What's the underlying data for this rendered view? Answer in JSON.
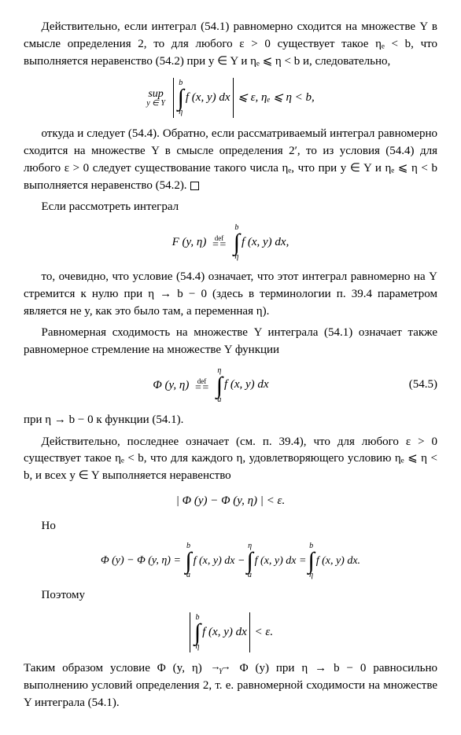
{
  "p1": "Действительно, если интеграл (54.1) равномерно сходится на множестве Y в смысле определения 2, то для любого ε > 0 существует такое ηₑ < b, что выполняется неравенство (54.2) при y ∈ Y и ηₑ ⩽ η < b и, следовательно,",
  "eq1_sup": "sup",
  "eq1_sub": "y ∈ Y",
  "eq1_top": "b",
  "eq1_bot": "η",
  "eq1_inner": "f (x,  y) dx",
  "eq1_tail": " ⩽ ε,    ηₑ ⩽ η < b,",
  "p2": "откуда и следует (54.4). Обратно, если рассматриваемый интеграл равномерно сходится на множестве Y в смысле определения 2′, то из условия (54.4) для любого ε > 0 следует существование такого числа ηₑ, что при y ∈ Y и ηₑ ⩽ η < b выполняется неравенство (54.2).",
  "p3": "Если рассмотреть интеграл",
  "eq2_lhs": "F (y,  η)",
  "eq2_top": "b",
  "eq2_bot": "η",
  "eq2_inner": "f (x,  y) dx,",
  "p4": "то, очевидно, что условие (54.4) означает, что этот интеграл равномерно на Y стремится к нулю при η → b − 0 (здесь в терминологии п. 39.4 параметром является не y, как это было там, а переменная η).",
  "p5": "Равномерная сходимость на множестве Y интеграла (54.1) означает также равномерное стремление на множестве Y функции",
  "eq3_lhs": "Φ (y,  η)",
  "eq3_top": "η",
  "eq3_bot": "a",
  "eq3_inner": "f (x,  y) dx",
  "eq3_num": "(54.5)",
  "p6": "при η → b − 0 к функции (54.1).",
  "p7": "Действительно, последнее означает (см. п. 39.4), что для любого ε > 0 существует такое ηₑ < b, что для каждого η, удовлетворяющего условию ηₑ ⩽ η < b, и всех y ∈ Y выполняется неравенство",
  "eq4": "| Φ (y) − Φ (y,  η) | < ε.",
  "p8": "Но",
  "eq5_a": "Φ (y) − Φ (y,  η) = ",
  "eq5_t1": "b",
  "eq5_b1": "a",
  "eq5_m1": "f (x,  y) dx − ",
  "eq5_t2": "η",
  "eq5_b2": "a",
  "eq5_m2": "f (x,  y) dx = ",
  "eq5_t3": "b",
  "eq5_b3": "η",
  "eq5_m3": "f (x,  y) dx.",
  "p9": "Поэтому",
  "eq6_top": "b",
  "eq6_bot": "η",
  "eq6_inner": "f (x,  y) dx",
  "eq6_tail": " < ε.",
  "p10a": "Таким образом условие  Φ (y, η)",
  "p10b": "Φ (y)  при  η → b − 0  равносильно выполнению условий определения 2, т. е. равномерной сходимости на множестве Y интеграла (54.1).",
  "arrow_top": "→→",
  "arrow_bot": "Y",
  "def_label": "def"
}
